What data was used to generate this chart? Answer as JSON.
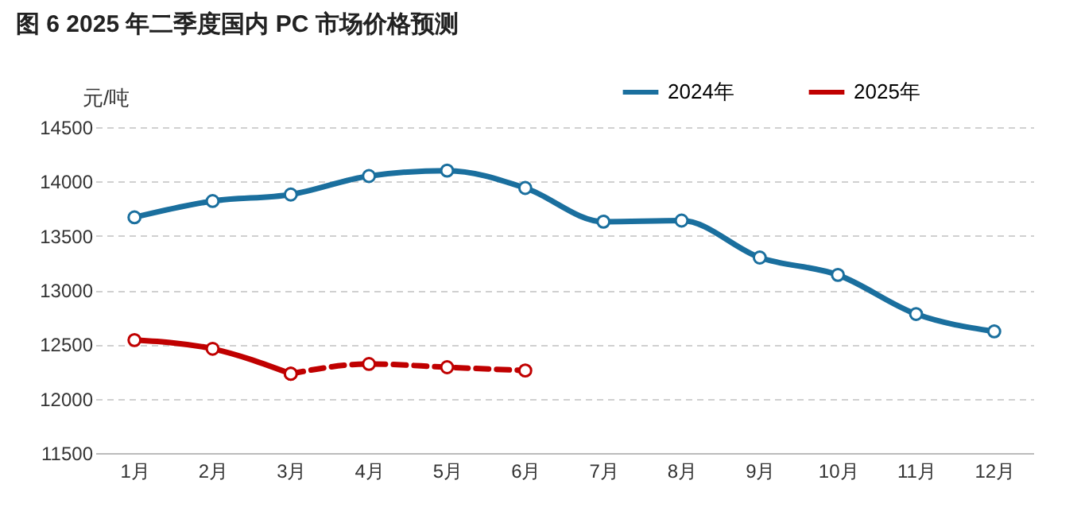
{
  "chart_data": {
    "type": "line",
    "title": "图 6 2025 年二季度国内 PC 市场价格预测",
    "ylabel": "元/吨",
    "categories": [
      "1月",
      "2月",
      "3月",
      "4月",
      "5月",
      "6月",
      "7月",
      "8月",
      "9月",
      "10月",
      "11月",
      "12月"
    ],
    "series": [
      {
        "name": "2024年",
        "color": "#1a6f9e",
        "line_style": "solid",
        "values": [
          13670,
          13820,
          13880,
          14050,
          14100,
          13940,
          13630,
          13640,
          13300,
          13140,
          12780,
          12620
        ]
      },
      {
        "name": "2025年",
        "color": "#c00000",
        "line_style": "solid",
        "values": [
          12540,
          12460,
          12230,
          null,
          null,
          null,
          null,
          null,
          null,
          null,
          null,
          null
        ]
      },
      {
        "color": "#c00000",
        "line_style": "dashed",
        "values": [
          null,
          null,
          12230,
          12320,
          12290,
          12260,
          null,
          null,
          null,
          null,
          null,
          null
        ]
      }
    ],
    "ylim": [
      11500,
      14500
    ],
    "yticks": [
      11500,
      12000,
      12500,
      13000,
      13500,
      14000,
      14500
    ],
    "grid": "y",
    "legend": "top right",
    "marker": "circle"
  }
}
